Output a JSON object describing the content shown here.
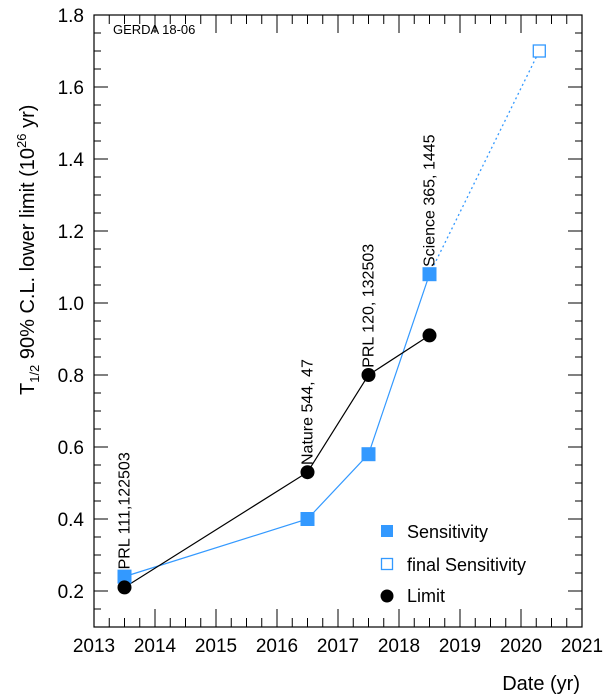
{
  "chart_data": {
    "type": "line",
    "tag": "GERDA 18-06",
    "xlabel": "Date (yr)",
    "ylabel": {
      "prefix": "T",
      "subscript": "1/2",
      "middle": "  90% C.L. lower limit (10",
      "superscript": "26",
      "suffix": " yr)"
    },
    "xlim": [
      2013,
      2021
    ],
    "ylim": [
      0.1,
      1.8
    ],
    "x_ticks": [
      "2013",
      "2014",
      "2015",
      "2016",
      "2017",
      "2018",
      "2019",
      "2020",
      "2021"
    ],
    "y_ticks": [
      "0.2",
      "0.4",
      "0.6",
      "0.8",
      "1.0",
      "1.2",
      "1.4",
      "1.6",
      "1.8"
    ],
    "grid": false,
    "legend_position": "bottom-right",
    "colors": {
      "sensitivity": "#3399ff",
      "limit": "#000000"
    },
    "series": [
      {
        "name": "Sensitivity",
        "marker": "filled-square",
        "color": "#3399ff",
        "x": [
          2013.5,
          2016.5,
          2017.5,
          2018.5
        ],
        "y": [
          0.24,
          0.4,
          0.58,
          1.08
        ]
      },
      {
        "name": "final Sensitivity",
        "marker": "open-square",
        "color": "#3399ff",
        "dotted_from": [
          2018.5,
          1.08
        ],
        "x": [
          2020.3
        ],
        "y": [
          1.7
        ]
      },
      {
        "name": "Limit",
        "marker": "filled-circle",
        "color": "#000000",
        "x": [
          2013.5,
          2016.5,
          2017.5,
          2018.5
        ],
        "y": [
          0.21,
          0.53,
          0.8,
          0.91
        ]
      }
    ],
    "annotations": [
      {
        "text": "PRL 111,122503",
        "x": 2013.5,
        "y": 0.26
      },
      {
        "text": "Nature 544, 47",
        "x": 2016.5,
        "y": 0.55
      },
      {
        "text": "PRL 120, 132503",
        "x": 2017.5,
        "y": 0.82
      },
      {
        "text": "Science 365, 1445",
        "x": 2018.5,
        "y": 1.1
      }
    ]
  }
}
